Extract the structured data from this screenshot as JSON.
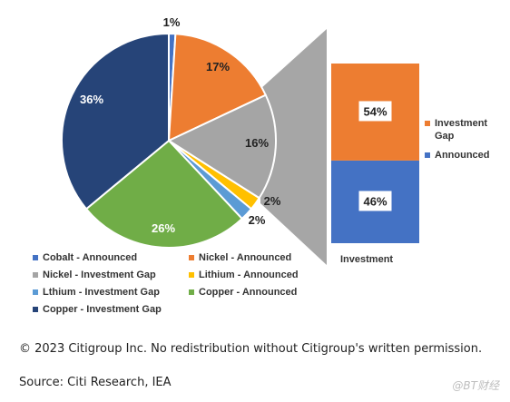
{
  "chart_data": [
    {
      "type": "pie",
      "slices": [
        {
          "label": "Cobalt - Announced",
          "value": 1,
          "display": "1%",
          "color": "#4472c4"
        },
        {
          "label": "Nickel - Announced",
          "value": 17,
          "display": "17%",
          "color": "#ed7d31"
        },
        {
          "label": "Nickel - Investment Gap",
          "value": 16,
          "display": "16%",
          "color": "#a5a5a5"
        },
        {
          "label": "Lithium - Announced",
          "value": 2,
          "display": "2%",
          "color": "#ffc000"
        },
        {
          "label": "Lthium - Investment Gap",
          "value": 2,
          "display": "2%",
          "color": "#5b9bd5"
        },
        {
          "label": "Copper - Announced",
          "value": 26,
          "display": "26%",
          "color": "#70ad47"
        },
        {
          "label": "Copper - Investment Gap",
          "value": 36,
          "display": "36%",
          "color": "#264478"
        }
      ],
      "legend_position": "bottom"
    },
    {
      "type": "bar",
      "stacked": true,
      "categories": [
        "Investment"
      ],
      "series": [
        {
          "name": "Announced",
          "values": [
            46
          ],
          "display": "46%",
          "color": "#4472c4"
        },
        {
          "name": "Investment Gap",
          "values": [
            54
          ],
          "display": "54%",
          "color": "#ed7d31"
        }
      ],
      "legend_position": "right"
    }
  ],
  "legend_secondary": [
    {
      "label": "Investment Gap",
      "color": "#ed7d31"
    },
    {
      "label": "Announced",
      "color": "#4472c4"
    }
  ],
  "connector_color": "#a6a6a6",
  "footer": {
    "copyright": "© 2023 Citigroup Inc. No redistribution without Citigroup's written permission.",
    "source": "Source: Citi Research, IEA"
  },
  "watermark": "@BT财经"
}
